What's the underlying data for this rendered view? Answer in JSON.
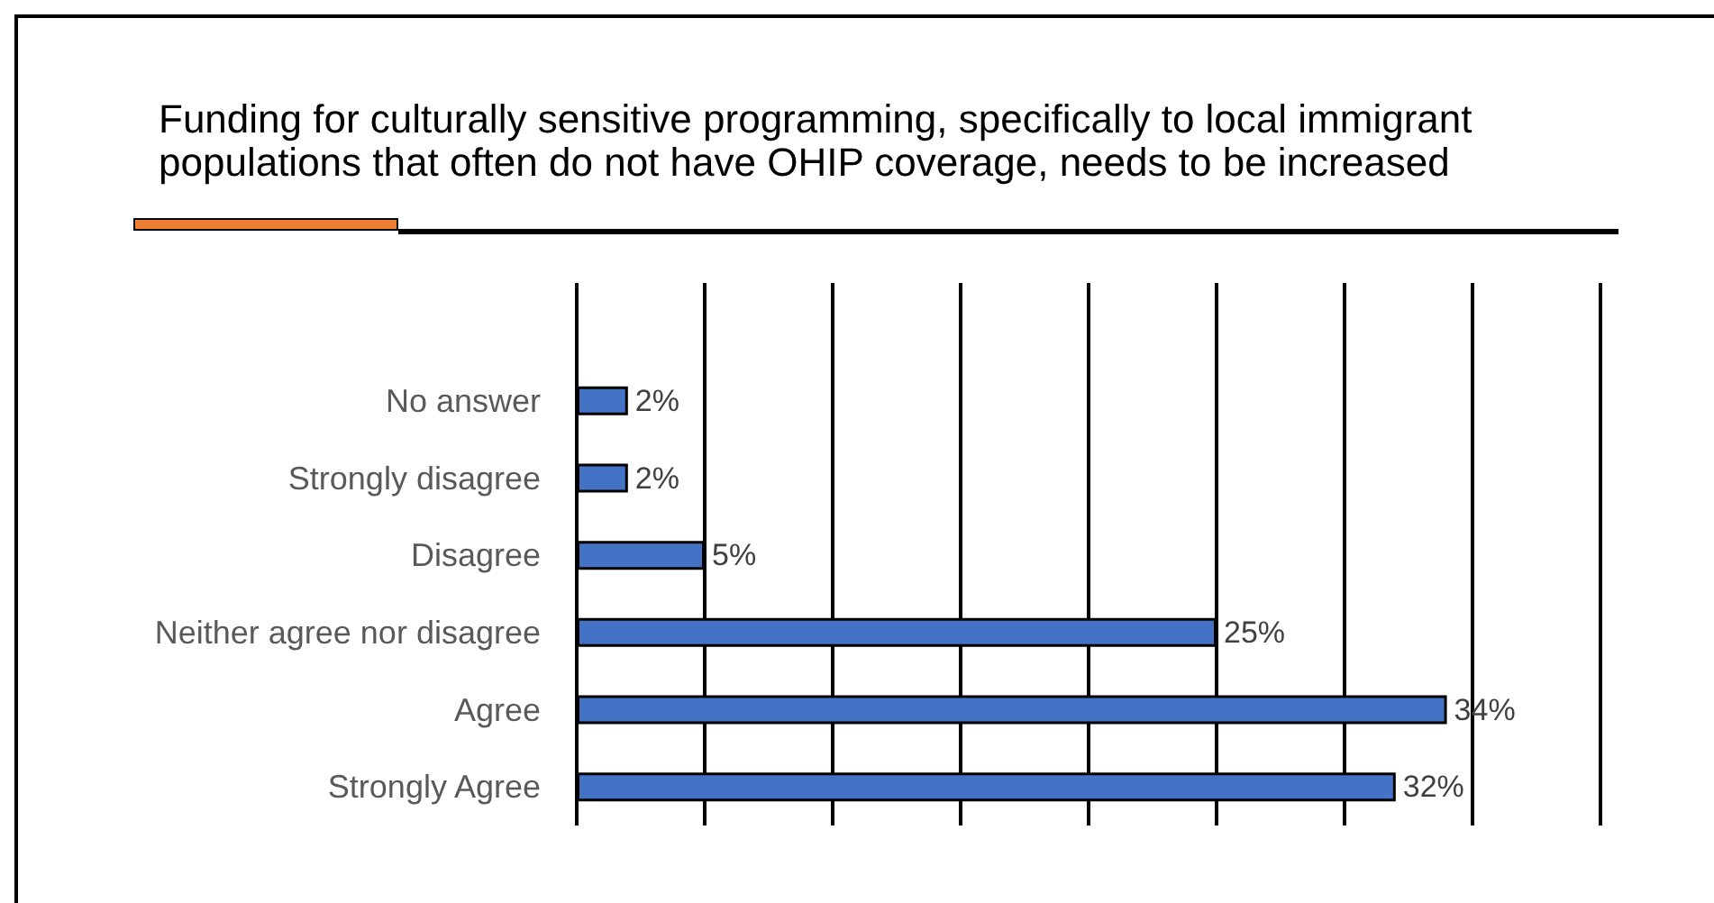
{
  "chart_data": {
    "type": "bar",
    "orientation": "horizontal",
    "title": "Funding for culturally sensitive programming, specifically to local immigrant populations that often do not have OHIP coverage, needs to be increased",
    "categories": [
      "No answer",
      "Strongly disagree",
      "Disagree",
      "Neither agree nor disagree",
      "Agree",
      "Strongly Agree"
    ],
    "values": [
      2,
      2,
      5,
      25,
      34,
      32
    ],
    "value_labels": [
      "2%",
      "2%",
      "5%",
      "25%",
      "34%",
      "32%"
    ],
    "color": "#4472c4",
    "xlim": [
      0,
      40
    ],
    "xticks": [
      {
        "value": 0,
        "label": null
      },
      {
        "value": 5,
        "label": null
      },
      {
        "value": 10,
        "label": null
      },
      {
        "value": 15,
        "label": null
      },
      {
        "value": 20,
        "label": null
      },
      {
        "value": 25,
        "label": null
      },
      {
        "value": 30,
        "label": null
      },
      {
        "value": 35,
        "label": null
      },
      {
        "value": 40,
        "label": null
      }
    ],
    "grid": "x",
    "tick_labels": "y"
  }
}
